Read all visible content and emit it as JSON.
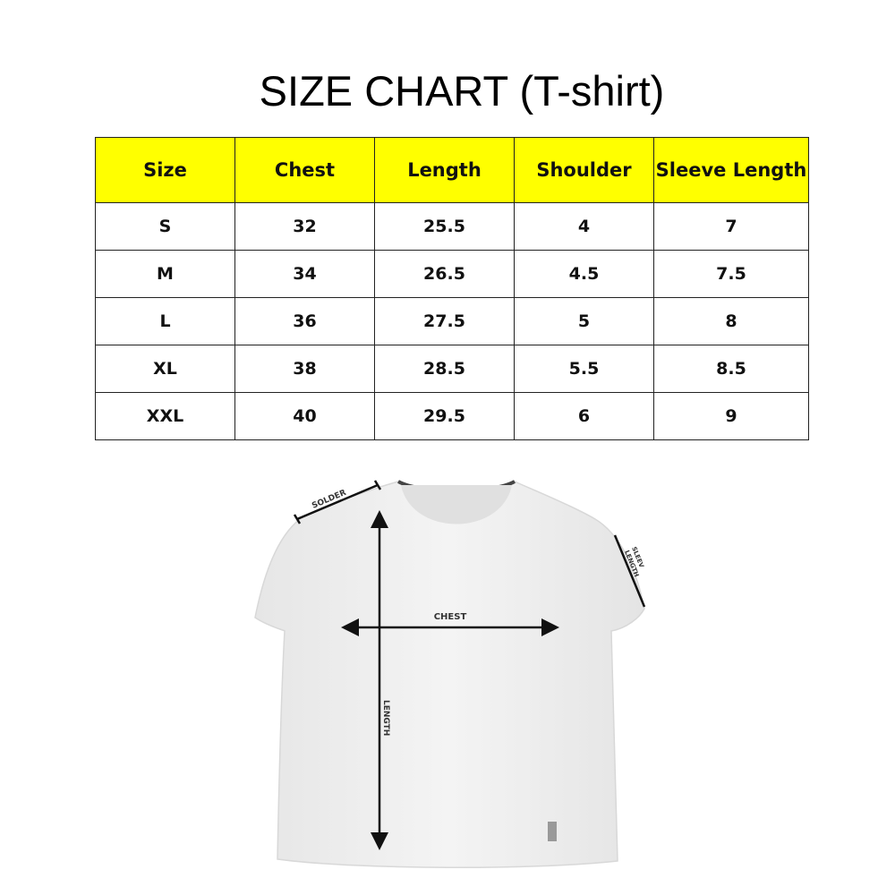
{
  "title": "SIZE CHART (T-shirt)",
  "table": {
    "headers": [
      "Size",
      "Chest",
      "Length",
      "Shoulder",
      "Sleeve Length"
    ],
    "rows": [
      [
        "S",
        "32",
        "25.5",
        "4",
        "7"
      ],
      [
        "M",
        "34",
        "26.5",
        "4.5",
        "7.5"
      ],
      [
        "L",
        "36",
        "27.5",
        "5",
        "8"
      ],
      [
        "XL",
        "38",
        "28.5",
        "5.5",
        "8.5"
      ],
      [
        "XXL",
        "40",
        "29.5",
        "6",
        "9"
      ]
    ],
    "header_color": "#ffff00"
  },
  "diagram": {
    "shoulder_label": "SOLDER",
    "sleeve_label_line1": "SLEEV",
    "sleeve_label_line2": "LENGTH",
    "chest_label": "CHEST",
    "length_label": "LENGTH"
  }
}
